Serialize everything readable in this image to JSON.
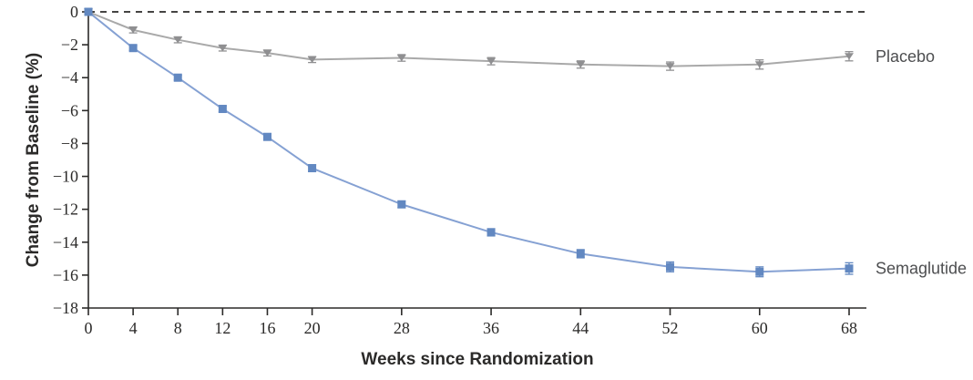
{
  "chart_data": {
    "type": "line",
    "title": "",
    "xlabel": "Weeks since Randomization",
    "ylabel": "Change from Baseline (%)",
    "x": [
      0,
      4,
      8,
      12,
      16,
      20,
      28,
      36,
      44,
      52,
      60,
      68
    ],
    "xlim": [
      0,
      68
    ],
    "ylim": [
      -18,
      0
    ],
    "xticks": [
      0,
      4,
      8,
      12,
      16,
      20,
      28,
      36,
      44,
      52,
      60,
      68
    ],
    "yticks": [
      0,
      -2,
      -4,
      -6,
      -8,
      -10,
      -12,
      -14,
      -16,
      -18
    ],
    "grid": false,
    "zero_line": {
      "style": "dashed",
      "color": "#2b2a29"
    },
    "axis_color": "#2b2a29",
    "tick_label_color": "#2b2a29",
    "series_label_color": "#4d4e50",
    "legend_position": "labels-at-line-ends-right",
    "series": [
      {
        "name": "Placebo",
        "marker": "triangle-down",
        "marker_color": "#8f8f91",
        "line_color": "#a9a9a9",
        "values": [
          0,
          -1.1,
          -1.7,
          -2.2,
          -2.5,
          -2.9,
          -2.8,
          -3.0,
          -3.2,
          -3.3,
          -3.2,
          -2.7
        ],
        "error": [
          0,
          0.18,
          0.18,
          0.18,
          0.18,
          0.18,
          0.2,
          0.22,
          0.22,
          0.25,
          0.28,
          0.28
        ]
      },
      {
        "name": "Semaglutide",
        "marker": "square",
        "marker_color": "#6288c1",
        "line_color": "#85a1d3",
        "values": [
          0,
          -2.2,
          -4.0,
          -5.9,
          -7.6,
          -9.5,
          -11.7,
          -13.4,
          -14.7,
          -15.5,
          -15.8,
          -15.6
        ],
        "error": [
          0,
          0.15,
          0.15,
          0.18,
          0.18,
          0.2,
          0.2,
          0.22,
          0.25,
          0.3,
          0.3,
          0.35
        ]
      }
    ]
  }
}
